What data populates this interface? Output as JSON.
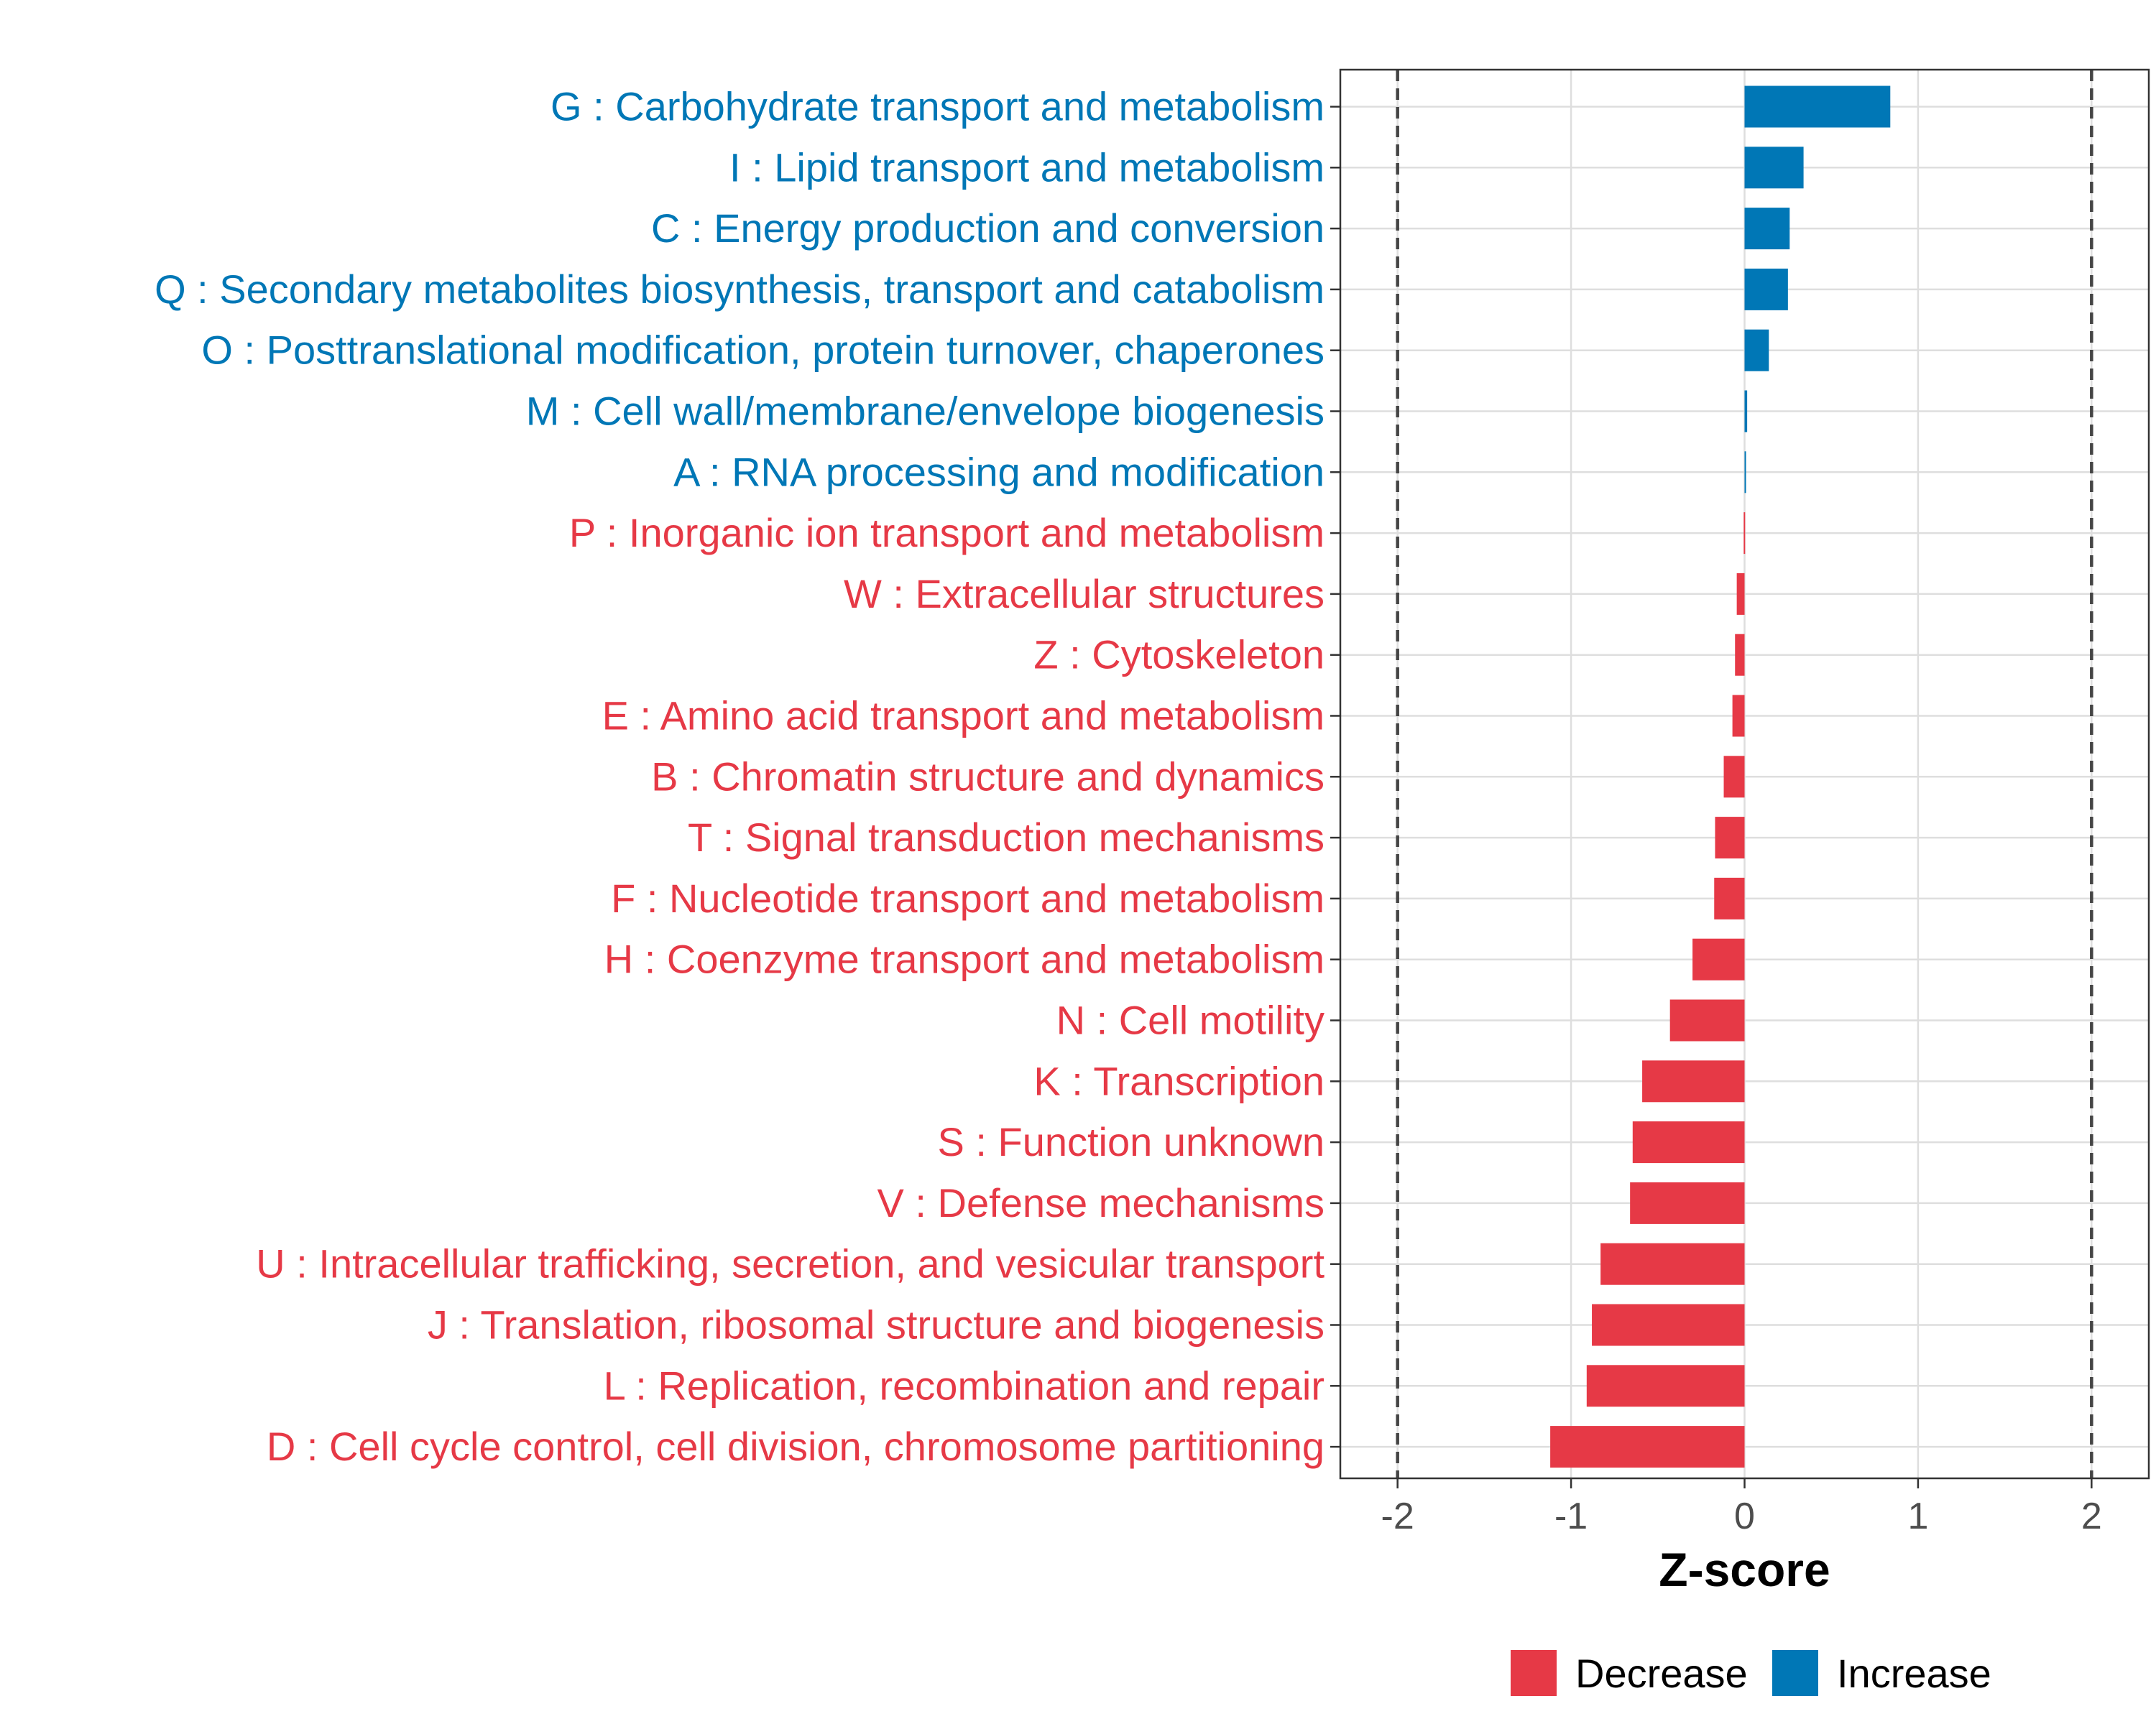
{
  "chart_data": {
    "type": "bar",
    "orientation": "horizontal",
    "title": "",
    "xlabel": "Z-score",
    "ylabel": "",
    "xlim": [
      -2.33,
      2.33
    ],
    "xticks": [
      -2,
      -1,
      0,
      1,
      2
    ],
    "xtick_labels": [
      "-2",
      "-1",
      "0",
      "1",
      "2"
    ],
    "reference_lines": [
      -2,
      2
    ],
    "grid": true,
    "colors": {
      "Decrease": "#e63946",
      "Increase": "#0077b6"
    },
    "categories": [
      "G : Carbohydrate transport and metabolism",
      "I : Lipid transport and metabolism",
      "C : Energy production and conversion",
      "Q : Secondary metabolites biosynthesis, transport and catabolism",
      "O : Posttranslational modification, protein turnover, chaperones",
      "M : Cell wall/membrane/envelope biogenesis",
      "A : RNA processing and modification",
      "P : Inorganic ion transport and metabolism",
      "W : Extracellular structures",
      "Z : Cytoskeleton",
      "E : Amino acid transport and metabolism",
      "B : Chromatin structure and dynamics",
      "T : Signal transduction mechanisms",
      "F : Nucleotide transport and metabolism",
      "H : Coenzyme transport and metabolism",
      "N : Cell motility",
      "K : Transcription",
      "S : Function unknown",
      "V : Defense mechanisms",
      "U : Intracellular trafficking, secretion, and vesicular transport",
      "J : Translation, ribosomal structure and biogenesis",
      "L : Replication, recombination and repair",
      "D : Cell cycle control, cell division, chromosome partitioning"
    ],
    "values": [
      0.84,
      0.34,
      0.26,
      0.25,
      0.14,
      0.015,
      0.008,
      -0.005,
      -0.045,
      -0.055,
      -0.07,
      -0.12,
      -0.17,
      -0.175,
      -0.3,
      -0.43,
      -0.59,
      -0.645,
      -0.66,
      -0.83,
      -0.88,
      -0.91,
      -1.12
    ],
    "groups": [
      "Increase",
      "Increase",
      "Increase",
      "Increase",
      "Increase",
      "Increase",
      "Increase",
      "Decrease",
      "Decrease",
      "Decrease",
      "Decrease",
      "Decrease",
      "Decrease",
      "Decrease",
      "Decrease",
      "Decrease",
      "Decrease",
      "Decrease",
      "Decrease",
      "Decrease",
      "Decrease",
      "Decrease",
      "Decrease"
    ],
    "legend": {
      "position": "bottom",
      "entries": [
        {
          "label": "Decrease",
          "color": "#e63946"
        },
        {
          "label": "Increase",
          "color": "#0077b6"
        }
      ]
    }
  }
}
